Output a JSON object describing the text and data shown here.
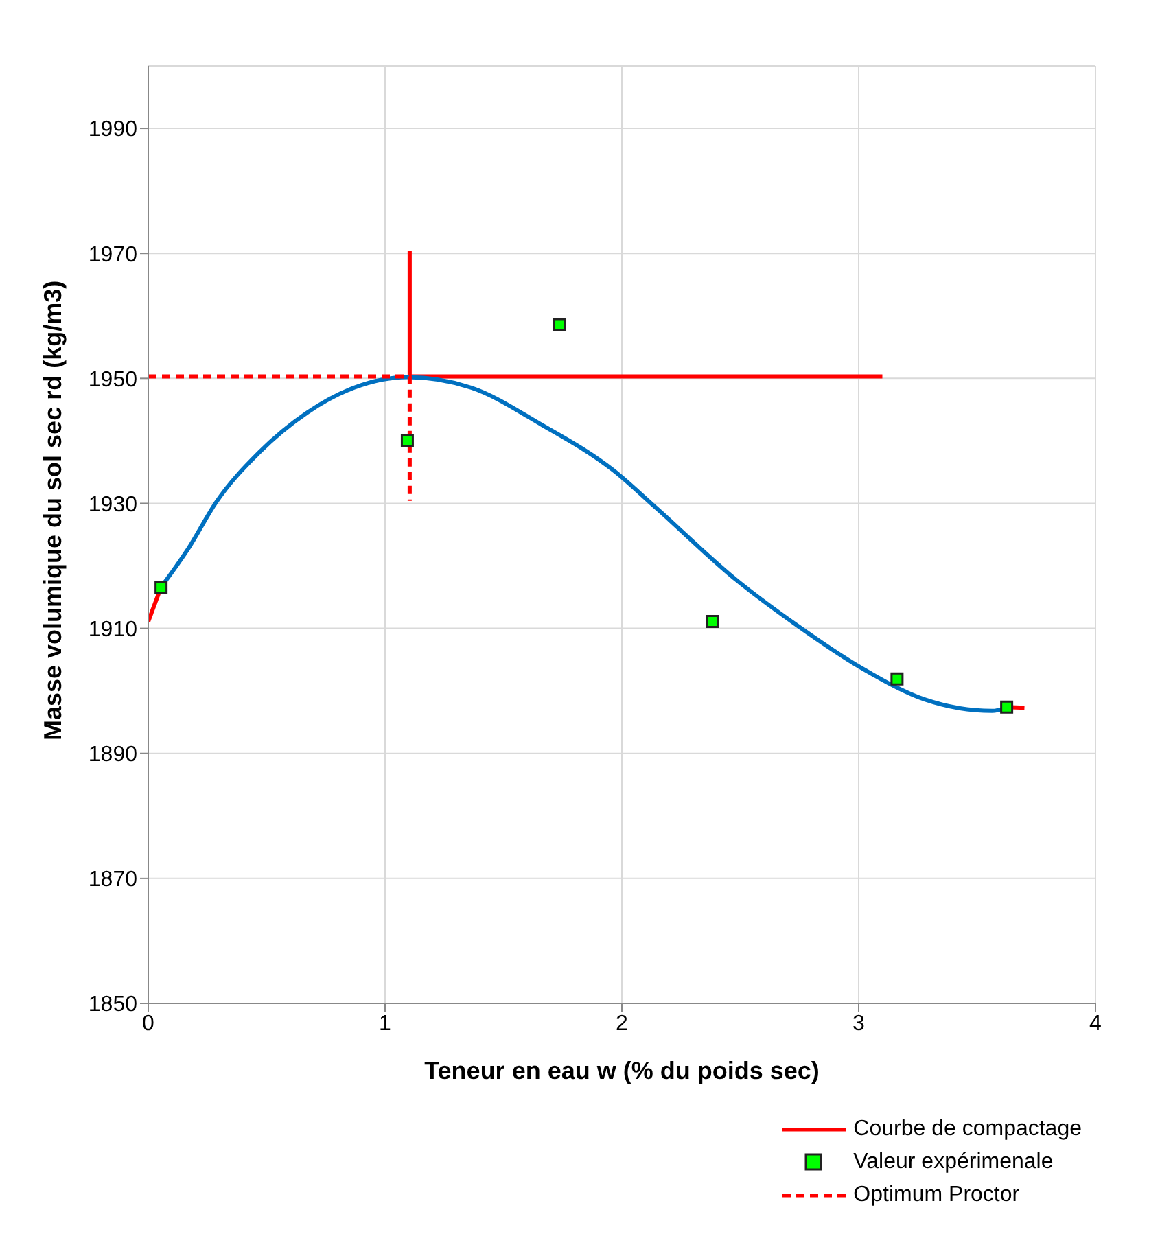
{
  "chart_data": {
    "type": "line",
    "xlabel": "Teneur en eau w (% du poids sec)",
    "ylabel": "Masse volumique du sol sec rd (kg/m3)",
    "xlim": [
      0,
      4
    ],
    "xticks": [
      0,
      1,
      2,
      3,
      4
    ],
    "ylim": [
      1850,
      2000
    ],
    "yticks": [
      1850,
      1870,
      1890,
      1910,
      1930,
      1950,
      1970,
      1990
    ],
    "grid": true,
    "legend": "bottom right",
    "series": [
      {
        "name": "Courbe de compactage",
        "color": "#ff0000",
        "line_style": "solid",
        "marker": "none",
        "x": [
          1.104,
          1.104,
          3.1
        ],
        "values": [
          1970.4,
          1950.3,
          1950.3
        ]
      },
      {
        "color": "#ff0000",
        "line_style": "solid",
        "marker": "none",
        "x": [
          0,
          0.054
        ],
        "values": [
          1911.1,
          1916.6
        ]
      },
      {
        "color": "#ff0000",
        "line_style": "solid",
        "marker": "none",
        "x": [
          3.625,
          3.7
        ],
        "values": [
          1897.4,
          1897.3
        ]
      },
      {
        "color": "#0070c0",
        "line_style": "solid",
        "marker": "none",
        "x": [
          0.054,
          0.168,
          0.287,
          0.467,
          0.67,
          0.868,
          1.096,
          1.365,
          1.665,
          1.964,
          2.144,
          2.485,
          2.743,
          3.006,
          3.281,
          3.563,
          3.625
        ],
        "values": [
          1916.6,
          1922.7,
          1930.2,
          1938.1,
          1944.5,
          1948.5,
          1950.2,
          1948.5,
          1942.5,
          1935.3,
          1929.3,
          1917.7,
          1910.4,
          1903.8,
          1898.6,
          1896.8,
          1897.3
        ]
      },
      {
        "name": "Valeur expérimenale",
        "type": "scatter",
        "color": "#00ff00",
        "marker": "square",
        "x": [
          0.054,
          1.094,
          1.737,
          2.383,
          3.162,
          3.625
        ],
        "values": [
          1916.6,
          1940.0,
          1958.6,
          1911.1,
          1901.9,
          1897.4
        ]
      },
      {
        "name": "Optimum Proctor",
        "color": "#ff0000",
        "line_style": "dashed",
        "marker": "none",
        "x": [
          0,
          1.104,
          1.104
        ],
        "values": [
          1950.3,
          1950.3,
          1930.4
        ]
      }
    ]
  }
}
